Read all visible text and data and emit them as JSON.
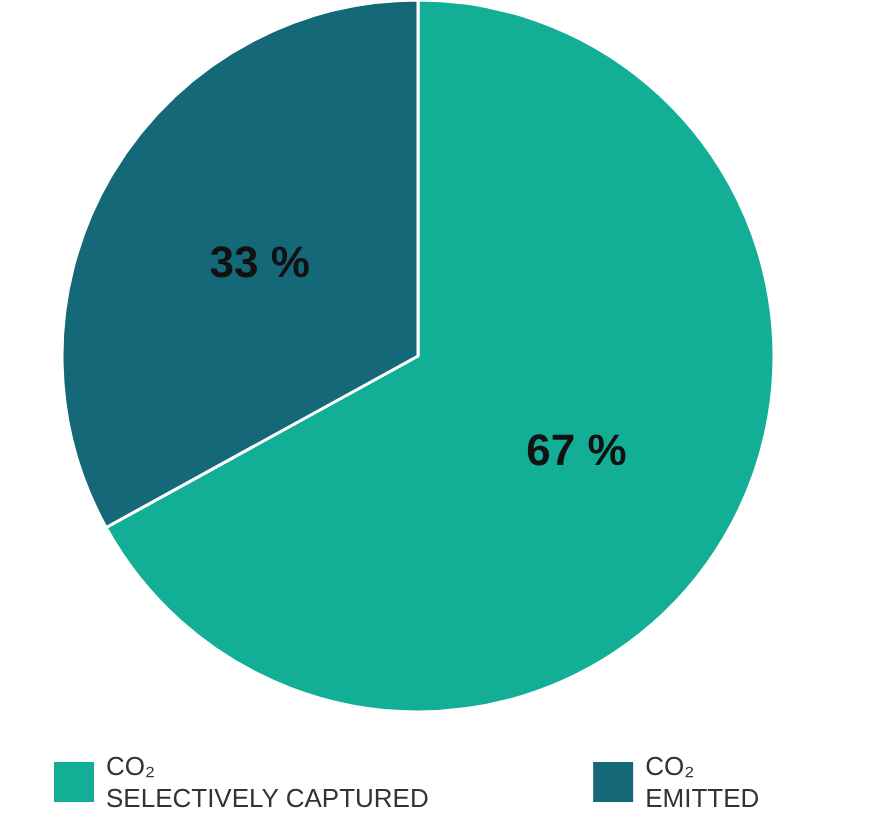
{
  "chart_data": {
    "type": "pie",
    "categories": [
      "CO₂\nSELECTIVELY CAPTURED",
      "CO₂\nEMITTED"
    ],
    "values": [
      67,
      33
    ],
    "colors": [
      "#13ae96",
      "#146878"
    ],
    "value_labels": [
      "67 %",
      "33 %"
    ],
    "legend": "bottom"
  }
}
